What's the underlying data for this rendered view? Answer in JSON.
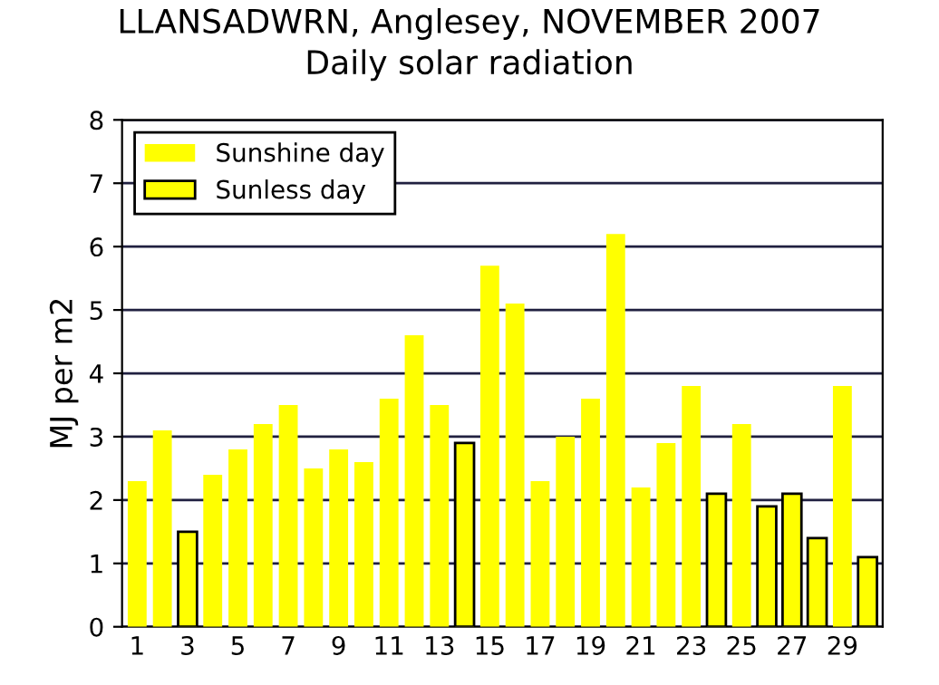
{
  "chart_data": {
    "type": "bar",
    "title": "LLANSADWRN, Anglesey, NOVEMBER 2007",
    "subtitle": "Daily solar radiation",
    "ylabel": "MJ per m2",
    "categories": [
      "1",
      null,
      "3",
      null,
      "5",
      null,
      "7",
      null,
      "9",
      null,
      "11",
      null,
      "13",
      null,
      "15",
      null,
      "17",
      null,
      "19",
      null,
      "21",
      null,
      "23",
      null,
      "25",
      null,
      "27",
      null,
      "29",
      null
    ],
    "series": [
      {
        "name": "Sunshine day",
        "color": "#ffff00",
        "values": [
          2.3,
          3.1,
          null,
          2.4,
          2.8,
          3.2,
          3.5,
          2.5,
          2.8,
          2.6,
          3.6,
          4.6,
          3.5,
          null,
          5.7,
          5.1,
          2.3,
          3.0,
          3.6,
          6.2,
          2.2,
          2.9,
          3.8,
          null,
          3.2,
          null,
          null,
          null,
          3.8,
          null
        ]
      },
      {
        "name": "Sunless day",
        "color": "#ffff00",
        "values": [
          null,
          null,
          1.5,
          null,
          null,
          null,
          null,
          null,
          null,
          null,
          null,
          null,
          null,
          2.9,
          null,
          null,
          null,
          null,
          null,
          null,
          null,
          null,
          null,
          2.1,
          null,
          1.9,
          2.1,
          1.4,
          null,
          1.1
        ]
      }
    ],
    "ylim": [
      0,
      8
    ],
    "yticks": [
      0,
      1,
      2,
      3,
      4,
      5,
      6,
      7,
      8
    ],
    "grid": "y",
    "legend": "top left"
  }
}
